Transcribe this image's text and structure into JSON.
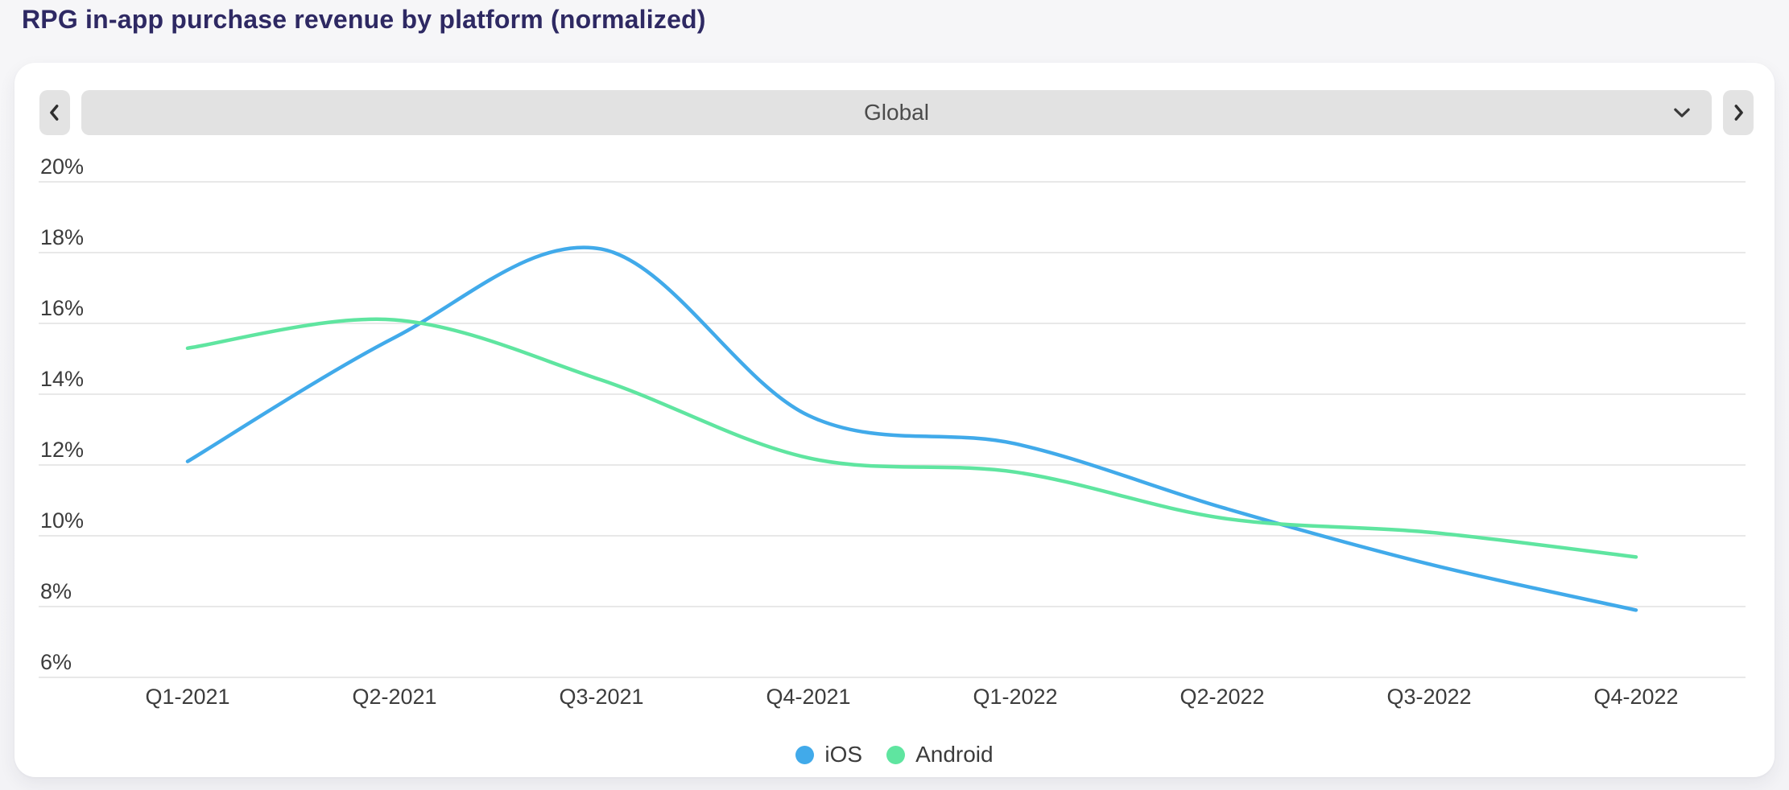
{
  "page": {
    "title": "RPG in-app purchase revenue by platform (normalized)"
  },
  "region_selector": {
    "selected": "Global",
    "prev_icon": "chevron-left",
    "next_icon": "chevron-right",
    "dropdown_icon": "chevron-down"
  },
  "chart_data": {
    "type": "line",
    "title": "RPG in-app purchase revenue by platform (normalized)",
    "categories": [
      "Q1-2021",
      "Q2-2021",
      "Q3-2021",
      "Q4-2021",
      "Q1-2022",
      "Q2-2022",
      "Q3-2022",
      "Q4-2022"
    ],
    "series": [
      {
        "name": "iOS",
        "color": "#41AAEA",
        "values": [
          12.1,
          15.6,
          18.1,
          13.4,
          12.6,
          10.8,
          9.2,
          7.9
        ]
      },
      {
        "name": "Android",
        "color": "#5FE5A0",
        "values": [
          15.3,
          16.1,
          14.4,
          12.2,
          11.8,
          10.5,
          10.1,
          9.4
        ]
      }
    ],
    "xlabel": "",
    "ylabel": "",
    "ylim": [
      6,
      20
    ],
    "y_tick_step": 2,
    "y_tick_suffix": "%",
    "grid": true,
    "legend_position": "bottom"
  },
  "colors": {
    "title": "#2E2963",
    "axis_text": "#3C3C3C",
    "gridline": "#E8E8E8",
    "page_bg": "#F5F5F7",
    "card_bg": "#FFFFFF",
    "control_bg": "#E3E3E3",
    "control_icon": "#2F2F2F",
    "select_text": "#4B4B4B"
  }
}
